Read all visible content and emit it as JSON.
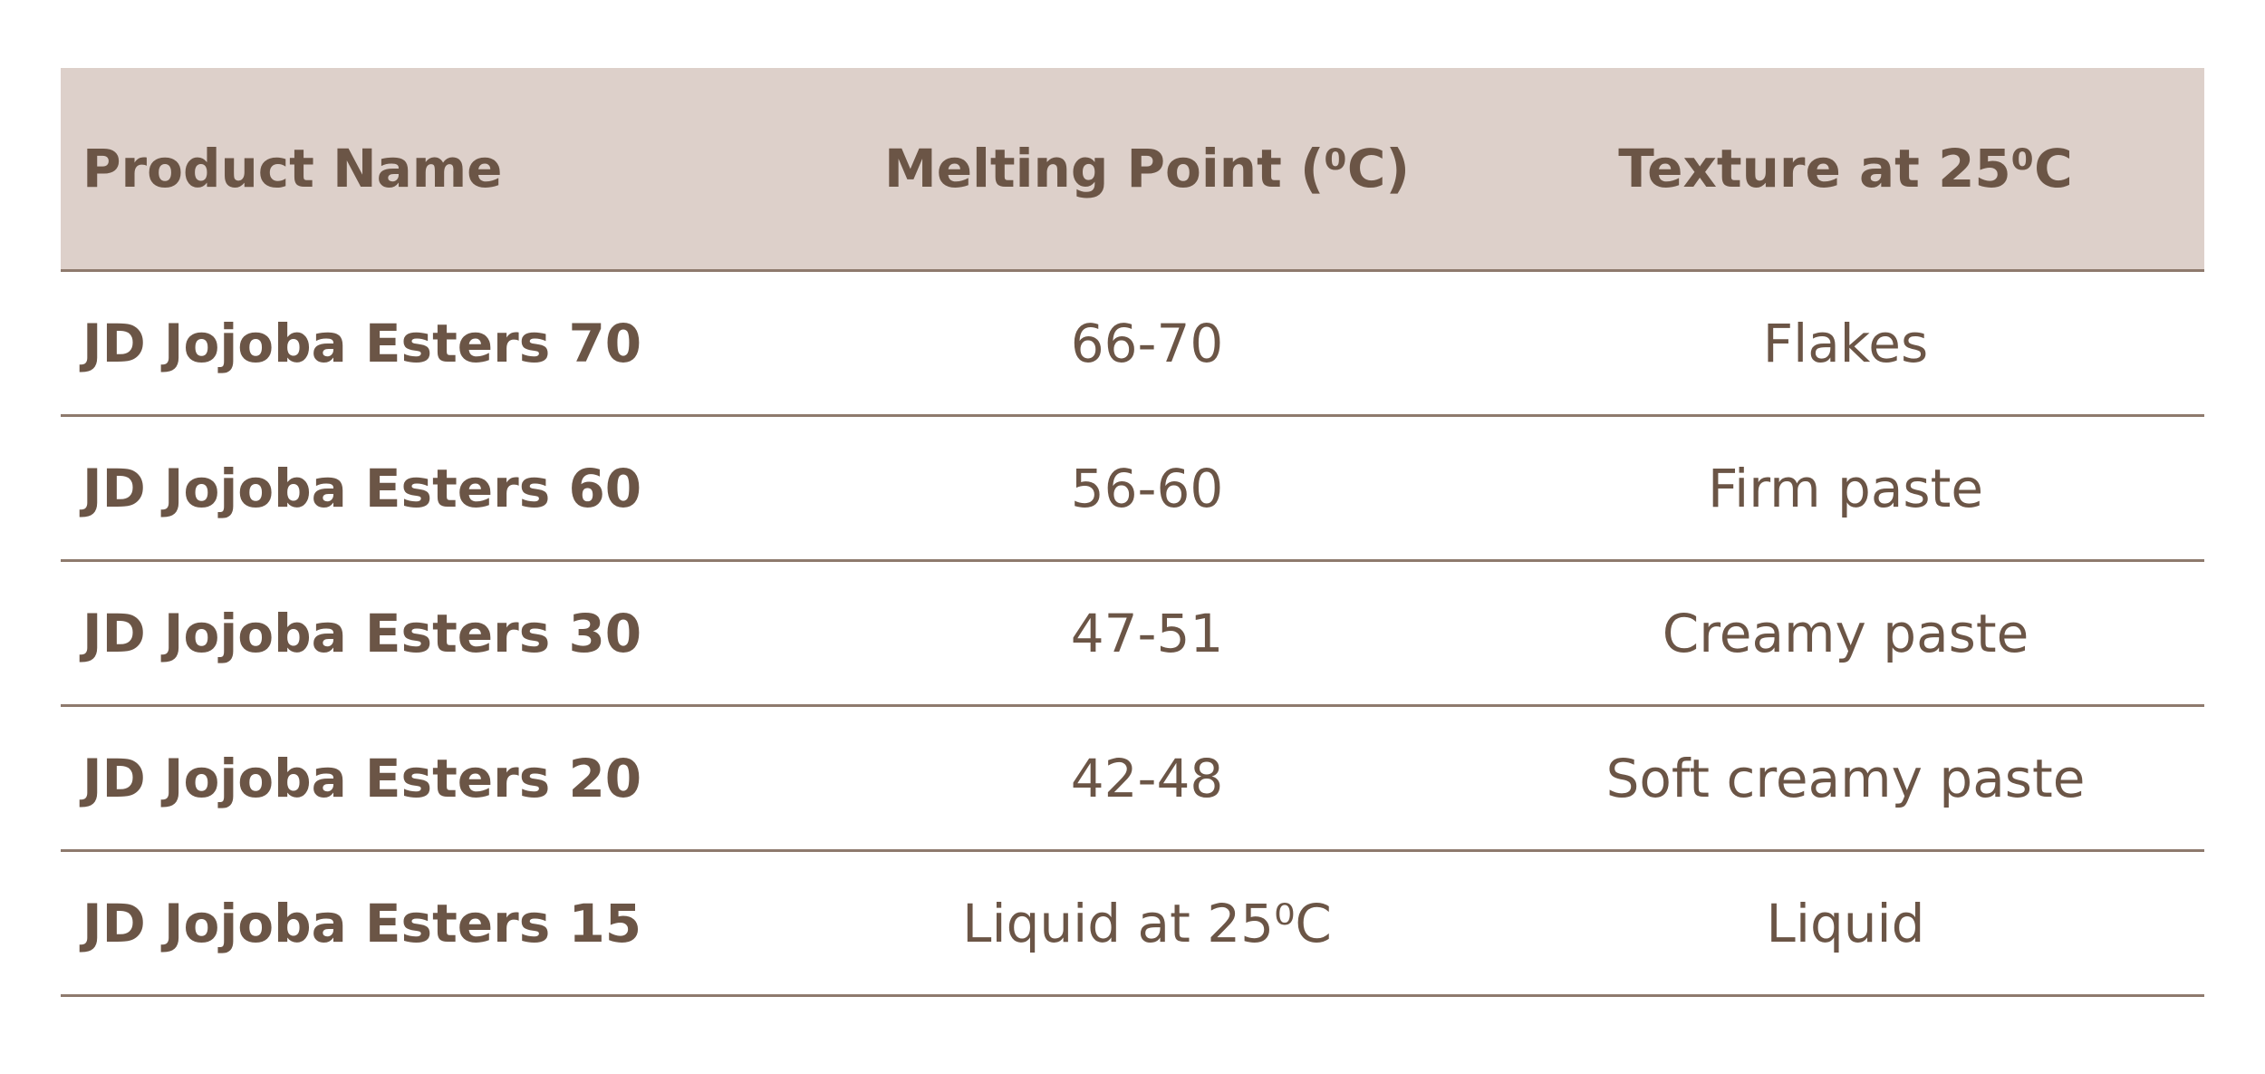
{
  "table": {
    "header": [
      "Product Name",
      "Melting Point (⁰C)",
      "Texture at 25⁰C"
    ],
    "rows": [
      [
        "JD Jojoba Esters 70",
        "66-70",
        "Flakes"
      ],
      [
        "JD Jojoba Esters 60",
        "56-60",
        "Firm paste"
      ],
      [
        "JD Jojoba Esters 30",
        "47-51",
        "Creamy paste"
      ],
      [
        "JD Jojoba Esters 20",
        "42-48",
        "Soft creamy paste"
      ],
      [
        "JD Jojoba Esters 15",
        "Liquid at 25⁰C",
        "Liquid"
      ]
    ]
  }
}
